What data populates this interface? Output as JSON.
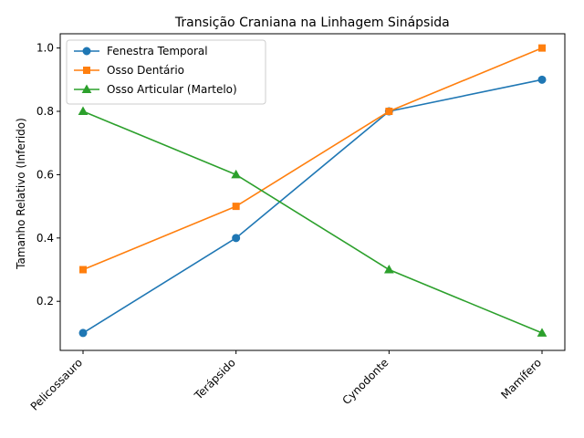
{
  "chart_data": {
    "type": "line",
    "title": "Transição Craniana na Linhagem Sinápsida",
    "xlabel": "",
    "ylabel": "Tamanho Relativo (Inferido)",
    "categories": [
      "Pelicossauro",
      "Terápsido",
      "Cynodonte",
      "Mamífero"
    ],
    "ylim": [
      0.045,
      1.045
    ],
    "yticks": [
      0.2,
      0.4,
      0.6,
      0.8,
      1.0
    ],
    "ytick_labels": [
      "0.2",
      "0.4",
      "0.6",
      "0.8",
      "1.0"
    ],
    "grid": false,
    "legend_position": "upper-left",
    "series": [
      {
        "name": "Fenestra Temporal",
        "values": [
          0.1,
          0.4,
          0.8,
          0.9
        ],
        "color": "#1f77b4",
        "marker": "circle"
      },
      {
        "name": "Osso Dentário",
        "values": [
          0.3,
          0.5,
          0.8,
          1.0
        ],
        "color": "#ff7f0e",
        "marker": "square"
      },
      {
        "name": "Osso Articular (Martelo)",
        "values": [
          0.8,
          0.6,
          0.3,
          0.1
        ],
        "color": "#2ca02c",
        "marker": "triangle"
      }
    ]
  }
}
